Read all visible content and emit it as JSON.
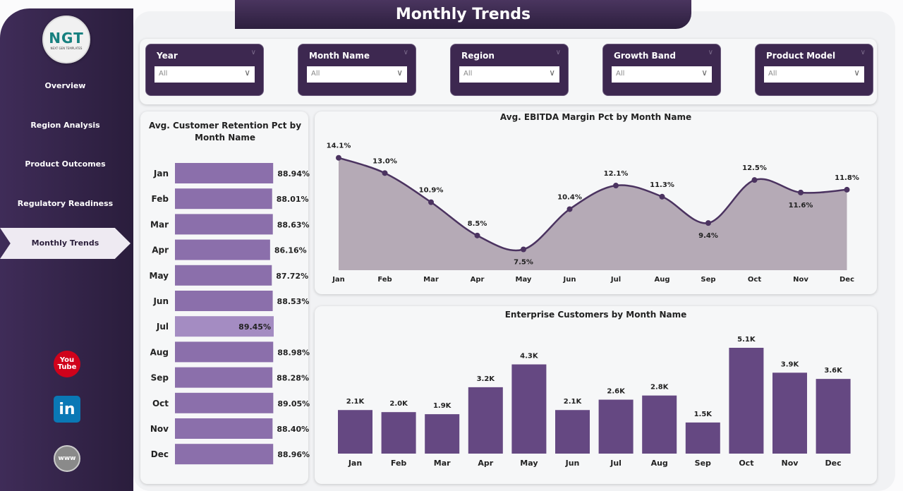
{
  "header": {
    "title": "Monthly Trends"
  },
  "logo": {
    "text": "NGT",
    "subtext": "NEXT GEN TEMPLATES"
  },
  "sidebar": {
    "items": [
      {
        "label": "Overview"
      },
      {
        "label": "Region Analysis"
      },
      {
        "label": "Product Outcomes"
      },
      {
        "label": "Regulatory Readiness"
      },
      {
        "label": "Monthly Trends",
        "active": true
      }
    ],
    "social": [
      {
        "icon": "youtube-icon",
        "label": "You Tube",
        "color": "#d0021b"
      },
      {
        "icon": "linkedin-icon",
        "label": "in",
        "color": "#0a78b5"
      },
      {
        "icon": "globe-icon",
        "label": "www",
        "color": "#8a8a8a"
      }
    ]
  },
  "filters": [
    {
      "label": "Year",
      "value": "All"
    },
    {
      "label": "Month Name",
      "value": "All"
    },
    {
      "label": "Region",
      "value": "All"
    },
    {
      "label": "Growth Band",
      "value": "All"
    },
    {
      "label": "Product Model",
      "value": "All"
    }
  ],
  "chart_data": [
    {
      "type": "bar",
      "orientation": "horizontal",
      "title": "Avg. Customer Retention Pct by Month Name",
      "categories": [
        "Jan",
        "Feb",
        "Mar",
        "Apr",
        "May",
        "Jun",
        "Jul",
        "Aug",
        "Sep",
        "Oct",
        "Nov",
        "Dec"
      ],
      "values": [
        88.94,
        88.01,
        88.63,
        86.16,
        87.72,
        88.53,
        89.45,
        88.98,
        88.28,
        89.05,
        88.4,
        88.96
      ],
      "labels": [
        "88.94%",
        "88.01%",
        "88.63%",
        "86.16%",
        "87.72%",
        "88.53%",
        "89.45%",
        "88.98%",
        "88.28%",
        "89.05%",
        "88.40%",
        "88.96%"
      ],
      "color": "#8b6fab",
      "highlight_color": "#a48cc2",
      "xlim": [
        0,
        89.45
      ]
    },
    {
      "type": "area",
      "title": "Avg. EBITDA Margin Pct by Month Name",
      "categories": [
        "Jan",
        "Feb",
        "Mar",
        "Apr",
        "May",
        "Jun",
        "Jul",
        "Aug",
        "Sep",
        "Oct",
        "Nov",
        "Dec"
      ],
      "values": [
        14.1,
        13.0,
        10.9,
        8.5,
        7.5,
        10.4,
        12.1,
        11.3,
        9.4,
        12.5,
        11.6,
        11.8
      ],
      "labels": [
        "14.1%",
        "13.0%",
        "10.9%",
        "8.5%",
        "7.5%",
        "10.4%",
        "12.1%",
        "11.3%",
        "9.4%",
        "12.5%",
        "11.6%",
        "11.8%"
      ],
      "line_color": "#4b3360",
      "fill_color": "#b5aab6",
      "ylim": [
        6,
        15
      ]
    },
    {
      "type": "bar",
      "title": "Enterprise Customers by Month Name",
      "categories": [
        "Jan",
        "Feb",
        "Mar",
        "Apr",
        "May",
        "Jun",
        "Jul",
        "Aug",
        "Sep",
        "Oct",
        "Nov",
        "Dec"
      ],
      "values": [
        2100,
        2000,
        1900,
        3200,
        4300,
        2100,
        2600,
        2800,
        1500,
        5100,
        3900,
        3600
      ],
      "labels": [
        "2.1K",
        "2.0K",
        "1.9K",
        "3.2K",
        "4.3K",
        "2.1K",
        "2.6K",
        "2.8K",
        "1.5K",
        "5.1K",
        "3.9K",
        "3.6K"
      ],
      "color": "#654882",
      "ylim": [
        0,
        5100
      ]
    }
  ]
}
